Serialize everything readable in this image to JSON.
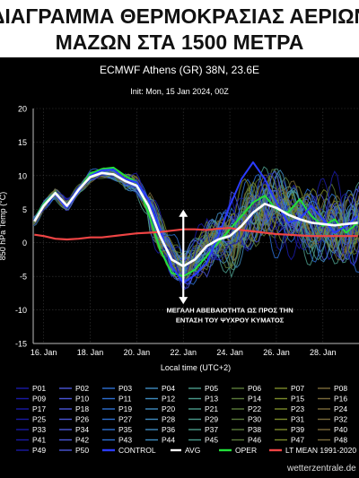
{
  "headline": {
    "line1": "ΔΙΑΓΡΑΜΜΑ ΘΕΡΜΟΚΡΑΣΙΑΣ ΑΕΡΙΩΝ",
    "line2": "ΜΑΖΩΝ ΣΤΑ 1500 ΜΕΤΡΑ"
  },
  "chart_data": {
    "type": "line",
    "title": "ECMWF Athens (GR) 38N, 23.6E",
    "subtitle": "Init: Mon, 15 Jan 2024, 00Z",
    "xlabel": "Local time (UTC+2)",
    "ylabel": "850 hPa Temp (°C)",
    "ylim": [
      -15,
      20
    ],
    "yticks": [
      -15,
      -10,
      -5,
      0,
      5,
      10,
      15,
      20
    ],
    "xlim": [
      15.55,
      29.55
    ],
    "xticks": [
      {
        "x": 16,
        "label": "16. Jan"
      },
      {
        "x": 18,
        "label": "18. Jan"
      },
      {
        "x": 20,
        "label": "20. Jan"
      },
      {
        "x": 22,
        "label": "22. Jan"
      },
      {
        "x": 24,
        "label": "24. Jan"
      },
      {
        "x": 26,
        "label": "26. Jan"
      },
      {
        "x": 28,
        "label": "28. Jan"
      }
    ],
    "grid": true,
    "annotation": {
      "line1": "ΜΕΓΑΛΗ ΑΒΕΒΑΙΟΤΗΤΑ ΩΣ ΠΡΟΣ ΤΗΝ",
      "line2": "ΕΝΤΑΣΗ ΤΟΥ ΨΥΧΡΟΥ ΚΥΜΑΤΟΣ",
      "arrow_x": 22.0,
      "arrow_from": 4.8,
      "arrow_to": -9.0,
      "text_x": 24.0,
      "text_y": -10.5
    },
    "series": [
      {
        "name": "AVG",
        "color": "#ffffff",
        "x": [
          15.6,
          16.0,
          16.5,
          17.0,
          17.5,
          18.0,
          18.5,
          19.0,
          19.5,
          20.0,
          20.5,
          21.0,
          21.5,
          22.0,
          22.5,
          23.0,
          23.5,
          24.0,
          24.5,
          25.0,
          25.5,
          26.0,
          26.5,
          27.0,
          27.5,
          28.0,
          28.5,
          29.0,
          29.5
        ],
        "y": [
          3.2,
          5.5,
          7.4,
          5.5,
          7.9,
          9.8,
          10.4,
          10.2,
          9.2,
          8.5,
          5.5,
          1.0,
          -2.5,
          -3.5,
          -2.5,
          -0.5,
          0.5,
          1.0,
          2.5,
          4.5,
          5.8,
          5.2,
          4.2,
          3.5,
          3.0,
          2.8,
          2.6,
          2.8,
          3.0
        ]
      },
      {
        "name": "LT MEAN 1991-2020",
        "color": "#ef4444",
        "x": [
          15.6,
          16.0,
          16.5,
          17.0,
          17.5,
          18.0,
          18.5,
          19.0,
          19.5,
          20.0,
          20.5,
          21.0,
          21.5,
          22.0,
          22.5,
          23.0,
          23.5,
          24.0,
          24.5,
          25.0,
          25.5,
          26.0,
          26.5,
          27.0,
          27.5,
          28.0,
          28.5,
          29.0,
          29.5
        ],
        "y": [
          1.2,
          1.0,
          0.6,
          0.5,
          0.6,
          0.8,
          0.8,
          1.0,
          1.2,
          1.4,
          1.5,
          1.6,
          1.8,
          2.0,
          2.0,
          1.9,
          2.1,
          2.2,
          1.9,
          1.7,
          1.5,
          1.3,
          1.2,
          1.1,
          1.0,
          1.0,
          1.0,
          1.0,
          1.0
        ]
      },
      {
        "name": "CONTROL",
        "color": "#2b3cff",
        "x": [
          15.6,
          16.0,
          16.5,
          17.0,
          17.5,
          18.0,
          18.5,
          19.0,
          19.5,
          20.0,
          20.5,
          21.0,
          21.5,
          22.0,
          22.5,
          23.0,
          23.5,
          24.0,
          24.5,
          25.0,
          25.5,
          26.0,
          26.5,
          27.0,
          27.5,
          28.0,
          28.5,
          29.0,
          29.5
        ],
        "y": [
          3.4,
          5.6,
          7.3,
          5.2,
          7.6,
          10.0,
          10.8,
          10.9,
          9.5,
          9.0,
          6.5,
          2.0,
          -3.5,
          -6.0,
          -4.8,
          -3.0,
          1.0,
          5.5,
          9.5,
          12.0,
          9.5,
          6.0,
          3.0,
          3.5,
          5.5,
          3.5,
          1.5,
          2.5,
          4.0
        ]
      },
      {
        "name": "OPER",
        "color": "#22e03a",
        "x": [
          15.6,
          16.0,
          16.5,
          17.0,
          17.5,
          18.0,
          18.5,
          19.0,
          19.5,
          20.0,
          20.5,
          21.0,
          21.5,
          22.0,
          22.5,
          23.0,
          23.5,
          24.0,
          24.5,
          25.0,
          25.5,
          26.0,
          26.5,
          27.0,
          27.5,
          28.0,
          28.5,
          29.0,
          29.5
        ],
        "y": [
          3.5,
          5.8,
          7.5,
          5.4,
          7.8,
          10.3,
          11.0,
          11.2,
          10.0,
          9.0,
          4.5,
          -1.0,
          -4.5,
          -5.0,
          -4.0,
          -2.0,
          0.0,
          2.0,
          4.0,
          6.0,
          7.0,
          5.0,
          4.5,
          6.5,
          4.0,
          2.5,
          3.5,
          1.5,
          3.0
        ]
      }
    ],
    "ensemble_members": [
      "P01",
      "P02",
      "P03",
      "P04",
      "P05",
      "P06",
      "P07",
      "P08",
      "P09",
      "P10",
      "P11",
      "P12",
      "P13",
      "P14",
      "P15",
      "P16",
      "P17",
      "P18",
      "P19",
      "P20",
      "P21",
      "P22",
      "P23",
      "P24",
      "P25",
      "P26",
      "P27",
      "P28",
      "P29",
      "P30",
      "P31",
      "P32",
      "P33",
      "P34",
      "P35",
      "P36",
      "P37",
      "P38",
      "P39",
      "P40",
      "P41",
      "P42",
      "P43",
      "P44",
      "P45",
      "P46",
      "P47",
      "P48",
      "P49",
      "P50"
    ],
    "member_colors": [
      "#1a1aa6",
      "#4a55d8",
      "#2d6fd2",
      "#3f8bc0",
      "#4a9a8a",
      "#5a7a3a",
      "#7c8a2a",
      "#7a6a3a"
    ],
    "legend": [
      {
        "label": "CONTROL",
        "color": "#2b3cff"
      },
      {
        "label": "AVG",
        "color": "#ffffff"
      },
      {
        "label": "OPER",
        "color": "#22e03a"
      },
      {
        "label": "LT MEAN 1991-2020",
        "color": "#ef4444"
      }
    ],
    "watermark": "wetterzentrale.de"
  }
}
